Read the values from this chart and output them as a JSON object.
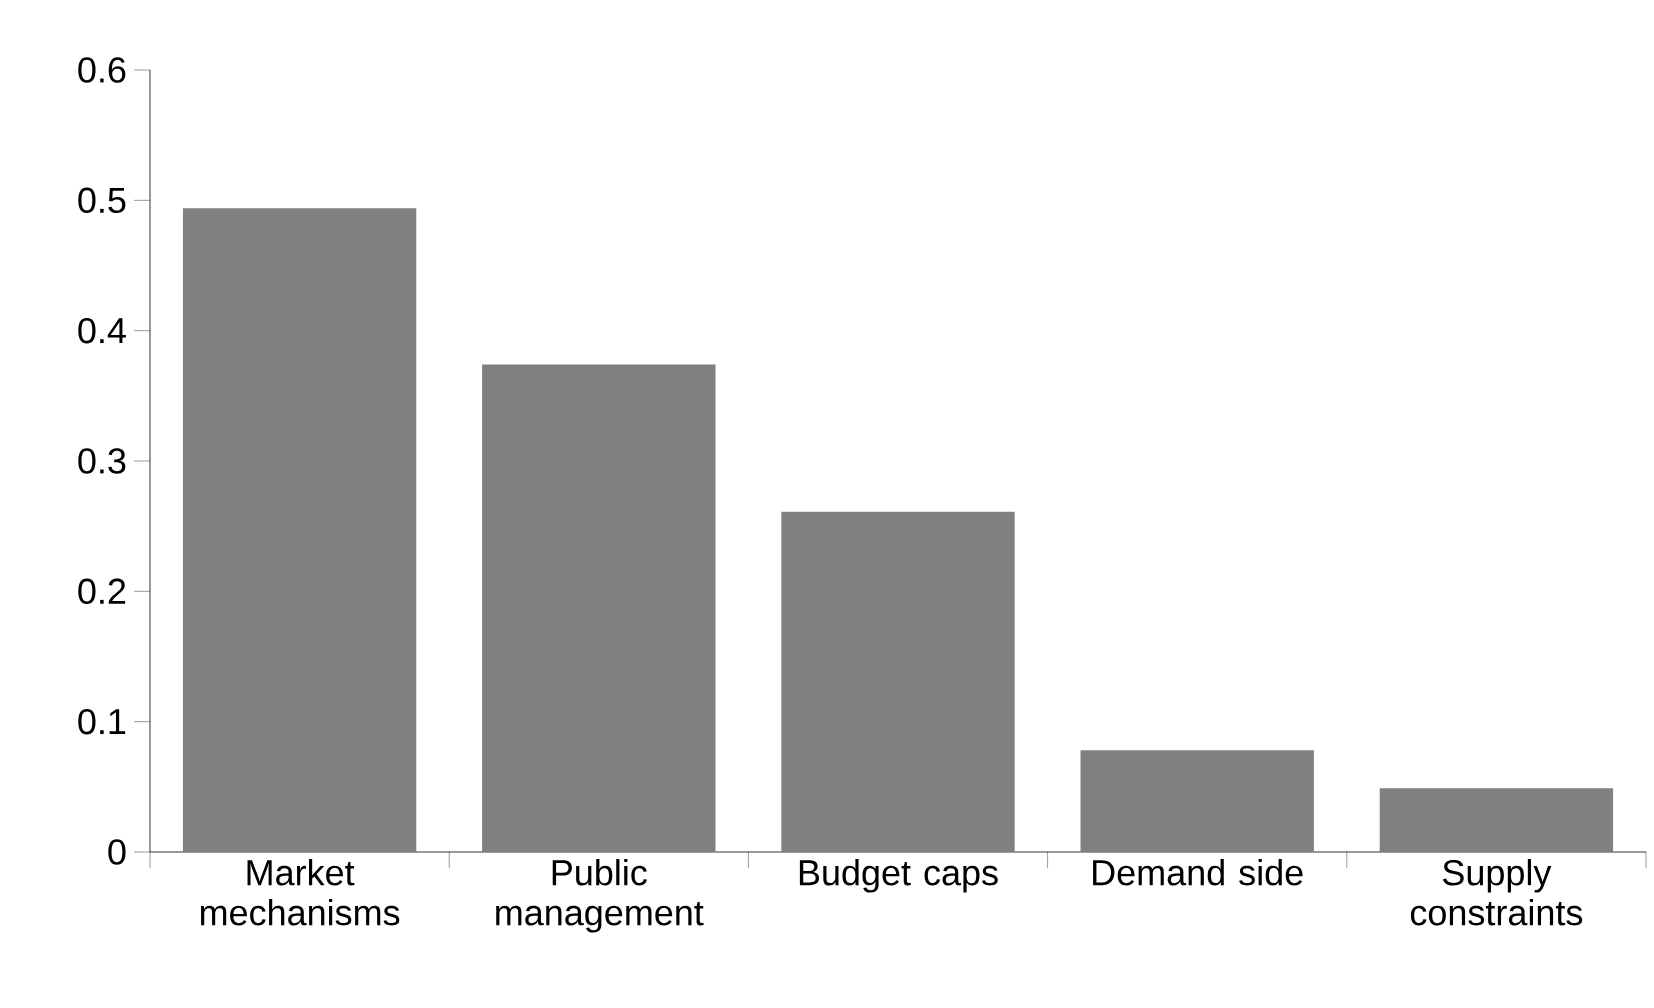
{
  "chart_data": {
    "type": "bar",
    "categories": [
      "Market mechanisms",
      "Public management",
      "Budget caps",
      "Demand side",
      "Supply constraints"
    ],
    "values": [
      0.494,
      0.374,
      0.261,
      0.078,
      0.049
    ],
    "color": "#808080",
    "ylim": [
      0,
      0.6
    ],
    "yticks": [
      0,
      0.1,
      0.2,
      0.3,
      0.4,
      0.5,
      0.6
    ],
    "grid": false
  }
}
